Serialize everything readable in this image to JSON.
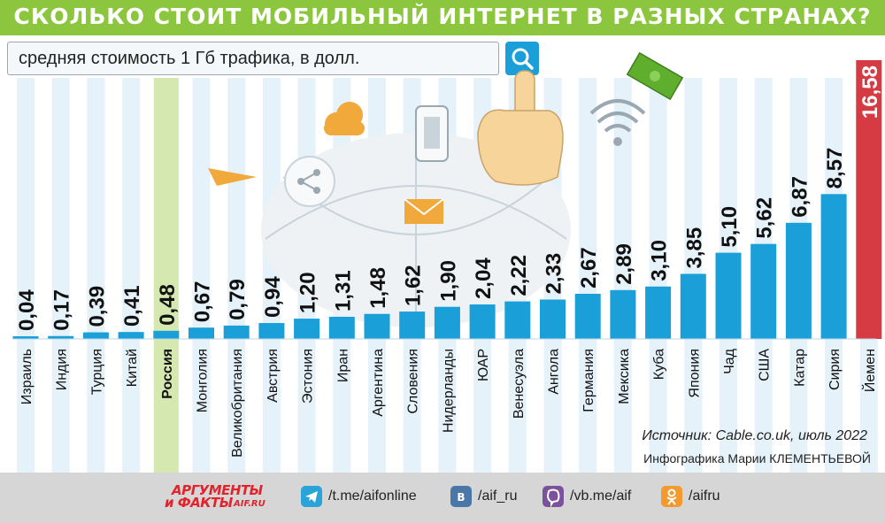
{
  "header": {
    "title": "СКОЛЬКО СТОИТ МОБИЛЬНЫЙ ИНТЕРНЕТ В РАЗНЫХ СТРАНАХ?",
    "subtitle": "средняя стоимость 1 Гб трафика, в долл."
  },
  "colors": {
    "title_bar": "#8cc63f",
    "bar": "#1a9fd9",
    "highlight_bar": "#d63a43",
    "column_bg": "#e6f2f9",
    "russia_column_bg": "#d4e8b0",
    "footer": "#d6d6d6"
  },
  "chart_data": {
    "type": "bar",
    "categories": [
      "Израиль",
      "Индия",
      "Турция",
      "Китай",
      "Россия",
      "Монголия",
      "Великобритания",
      "Австрия",
      "Эстония",
      "Иран",
      "Аргентина",
      "Словения",
      "Нидерланды",
      "ЮАР",
      "Венесуэла",
      "Ангола",
      "Германия",
      "Мексика",
      "Куба",
      "Япония",
      "Чад",
      "США",
      "Катар",
      "Сирия",
      "Йемен"
    ],
    "values": [
      0.04,
      0.17,
      0.39,
      0.41,
      0.48,
      0.67,
      0.79,
      0.94,
      1.2,
      1.31,
      1.48,
      1.62,
      1.9,
      2.04,
      2.22,
      2.33,
      2.67,
      2.89,
      3.1,
      3.85,
      5.1,
      5.62,
      6.87,
      8.57,
      16.58
    ],
    "value_labels": [
      "0,04",
      "0,17",
      "0,39",
      "0,41",
      "0,48",
      "0,67",
      "0,79",
      "0,94",
      "1,20",
      "1,31",
      "1,48",
      "1,62",
      "1,90",
      "2,04",
      "2,22",
      "2,33",
      "2,67",
      "2,89",
      "3,10",
      "3,85",
      "5,10",
      "5,62",
      "6,87",
      "8,57",
      "16,58"
    ],
    "highlighted_category": "Россия",
    "emphasized_bar": "Йемен",
    "scale_note": "the Йемен bar is visually truncated; below it all bars share one linear scale",
    "ylim": [
      0,
      8.57
    ]
  },
  "footer": {
    "source": "Источник: Cable.co.uk, июль 2022",
    "author": "Инфографика Марии КЛЕМЕНТЬЕВОЙ",
    "logo_line1": "АРГУМЕНТЫ",
    "logo_line2": "и ФАКТЫ",
    "logo_site": "AIF.RU",
    "social": [
      {
        "icon": "telegram-icon",
        "color": "#2aa3d8",
        "handle": "/t.me/aifonline"
      },
      {
        "icon": "vk-icon",
        "color": "#4a76a8",
        "handle": "/aif_ru"
      },
      {
        "icon": "viber-icon",
        "color": "#7b519d",
        "handle": "/vb.me/aif"
      },
      {
        "icon": "odnoklassniki-icon",
        "color": "#f29a2e",
        "handle": "/aifru"
      }
    ]
  }
}
